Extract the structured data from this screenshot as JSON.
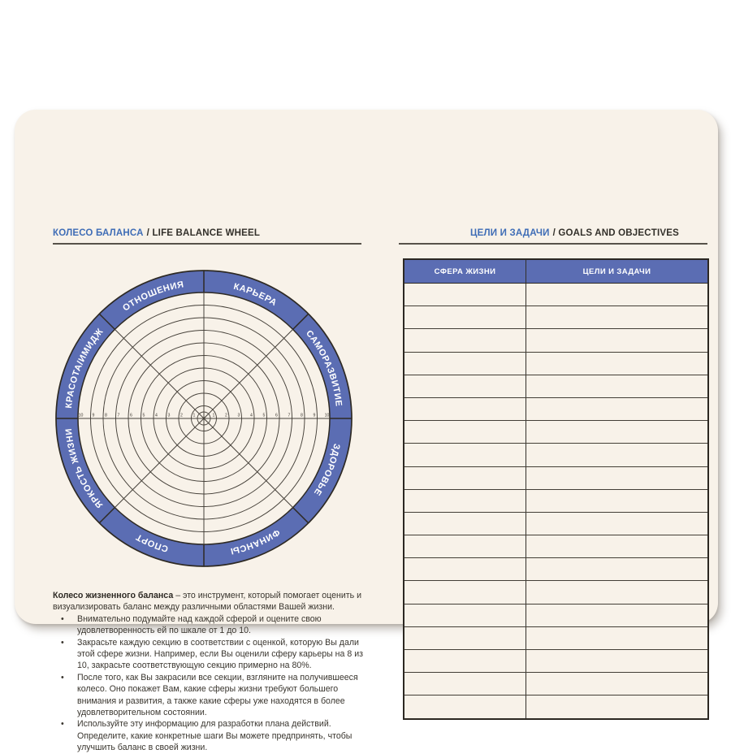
{
  "colors": {
    "page_bg": "#f8f2e9",
    "accent_blue": "#5b6db3",
    "title_blue": "#3f6db6",
    "line_dark": "#46413a",
    "ring_border": "#2e2a24",
    "text_dark": "#3a362f"
  },
  "left": {
    "title_ru": "КОЛЕСО БАЛАНСА",
    "title_en": "/ LIFE BALANCE WHEEL",
    "wheel": {
      "sectors_clockwise_from_top": [
        "КАРЬЕРА",
        "САМОРАЗВИТИЕ",
        "ЗДОРОВЬЕ",
        "ФИНАНСЫ",
        "СПОРТ",
        "ЯРКОСТЬ ЖИЗНИ",
        "КРАСОТА/ИМИДЖ",
        "ОТНОШЕНИЯ"
      ],
      "scale_min": 1,
      "scale_max": 10,
      "rings": 10
    },
    "intro_bold": "Колесо жизненного баланса",
    "intro_rest": "– это инструмент, который помогает оценить и визуализировать баланс между различными областями Вашей жизни.",
    "bullets": [
      "Внимательно подумайте над каждой сферой и оцените свою удовлетворенность ей по шкале от 1 до 10.",
      "Закрасьте каждую секцию в соответствии с оценкой, которую Вы дали этой сфере жизни. Например, если Вы оценили сферу карьеры на 8 из 10, закрасьте соответствующую секцию примерно на 80%.",
      "После того, как Вы закрасили все секции, взгляните на получившееся колесо. Оно покажет Вам, какие сферы жизни требуют большего внимания и развития, а также какие сферы уже находятся в более удовлетворительном состоянии.",
      "Используйте эту информацию для разработки плана действий. Определите, какие конкретные шаги Вы можете предпринять, чтобы улучшить баланс в своей жизни."
    ]
  },
  "right": {
    "title_ru": "ЦЕЛИ И ЗАДАЧИ",
    "title_en": "/ GOALS AND OBJECTIVES",
    "table": {
      "col1_header": "СФЕРА ЖИЗНИ",
      "col2_header": "ЦЕЛИ И ЗАДАЧИ",
      "rows": [
        {
          "sphere": "",
          "goals": ""
        },
        {
          "sphere": "",
          "goals": ""
        },
        {
          "sphere": "",
          "goals": ""
        },
        {
          "sphere": "",
          "goals": ""
        },
        {
          "sphere": "",
          "goals": ""
        },
        {
          "sphere": "",
          "goals": ""
        },
        {
          "sphere": "",
          "goals": ""
        },
        {
          "sphere": "",
          "goals": ""
        },
        {
          "sphere": "",
          "goals": ""
        },
        {
          "sphere": "",
          "goals": ""
        },
        {
          "sphere": "",
          "goals": ""
        },
        {
          "sphere": "",
          "goals": ""
        },
        {
          "sphere": "",
          "goals": ""
        },
        {
          "sphere": "",
          "goals": ""
        },
        {
          "sphere": "",
          "goals": ""
        },
        {
          "sphere": "",
          "goals": ""
        },
        {
          "sphere": "",
          "goals": ""
        },
        {
          "sphere": "",
          "goals": ""
        },
        {
          "sphere": "",
          "goals": ""
        }
      ]
    }
  }
}
